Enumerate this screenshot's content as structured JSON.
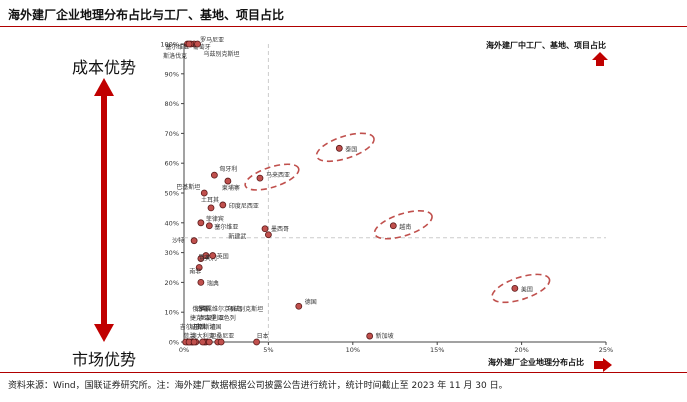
{
  "header": {
    "title": "海外建厂企业地理分布占比与工厂、基地、项目占比"
  },
  "left_axis_labels": {
    "top": "成本优势",
    "bottom": "市场优势"
  },
  "corner_labels": {
    "y_title": "海外建厂中工厂、基地、项目占比",
    "x_title": "海外建厂企业地理分布占比"
  },
  "footer": {
    "source": "资料来源：Wind，国联证券研究所。注：海外建厂数据根据公司披露公告进行统计，统计时间截止至 2023 年 11 月 30 日。"
  },
  "colors": {
    "accent": "#c00000",
    "point_fill": "#c0504d",
    "point_stroke": "#5a1a1a",
    "ellipse": "#c0504d"
  },
  "chart_data": {
    "type": "scatter",
    "xlim": [
      0,
      25
    ],
    "ylim": [
      0,
      100
    ],
    "x_ticks": [
      "0%",
      "5%",
      "10%",
      "15%",
      "20%",
      "25%"
    ],
    "y_ticks": [
      "0%",
      "10%",
      "20%",
      "30%",
      "40%",
      "50%",
      "60%",
      "70%",
      "80%",
      "90%",
      "100%"
    ],
    "reference_lines": {
      "x": 5,
      "y": 35
    },
    "points": [
      {
        "label": "罗马尼亚",
        "x": 0.6,
        "y": 100
      },
      {
        "label": "塞尔维亚",
        "x": 0.2,
        "y": 100
      },
      {
        "label": "葡萄牙",
        "x": 0.4,
        "y": 100
      },
      {
        "label": "斯洛伐克",
        "x": 0.3,
        "y": 100
      },
      {
        "label": "乌兹别克斯坦",
        "x": 0.8,
        "y": 100
      },
      {
        "label": "匈牙利",
        "x": 1.8,
        "y": 56
      },
      {
        "label": "柬埔寨",
        "x": 2.6,
        "y": 54
      },
      {
        "label": "马来西亚",
        "x": 4.5,
        "y": 55
      },
      {
        "label": "泰国",
        "x": 9.2,
        "y": 65
      },
      {
        "label": "巴基斯坦",
        "x": 1.2,
        "y": 50
      },
      {
        "label": "土耳其",
        "x": 1.6,
        "y": 45
      },
      {
        "label": "印度尼西亚",
        "x": 2.3,
        "y": 46
      },
      {
        "label": "越南",
        "x": 12.4,
        "y": 39
      },
      {
        "label": "墨西哥",
        "x": 4.8,
        "y": 38
      },
      {
        "label": "菲律宾",
        "x": 1.0,
        "y": 40
      },
      {
        "label": "塞尔维亚",
        "x": 1.5,
        "y": 39
      },
      {
        "label": "新建武",
        "x": 5.0,
        "y": 36
      },
      {
        "label": "沙特",
        "x": 0.6,
        "y": 34
      },
      {
        "label": "日本",
        "x": 1.3,
        "y": 29
      },
      {
        "label": "意大利",
        "x": 1.0,
        "y": 28
      },
      {
        "label": "英国",
        "x": 1.7,
        "y": 29
      },
      {
        "label": "南非",
        "x": 0.9,
        "y": 25
      },
      {
        "label": "瑞典",
        "x": 1.0,
        "y": 20
      },
      {
        "label": "美国",
        "x": 19.6,
        "y": 18
      },
      {
        "label": "德国",
        "x": 6.8,
        "y": 12
      },
      {
        "label": "加拿大",
        "x": 0.3,
        "y": 0
      },
      {
        "label": "卢森堡",
        "x": 0.5,
        "y": 0
      },
      {
        "label": "英属维尔京群岛",
        "x": 1.3,
        "y": 0
      },
      {
        "label": "澳大利亚",
        "x": 0.4,
        "y": 0
      },
      {
        "label": "巴西",
        "x": 0.2,
        "y": 0
      },
      {
        "label": "捷克",
        "x": 0.7,
        "y": 0
      },
      {
        "label": "俄罗斯",
        "x": 0.5,
        "y": 0
      },
      {
        "label": "坦桑尼亚",
        "x": 1.2,
        "y": 0
      },
      {
        "label": "吉尔吉斯斯坦",
        "x": 0.1,
        "y": 0
      },
      {
        "label": "以色列",
        "x": 2.0,
        "y": 0
      },
      {
        "label": "乌兹别克斯坦",
        "x": 2.2,
        "y": 0
      },
      {
        "label": "荷兰",
        "x": 0.3,
        "y": 0
      },
      {
        "label": "法国",
        "x": 1.5,
        "y": 0
      },
      {
        "label": "尼日利亚",
        "x": 0.6,
        "y": 0
      },
      {
        "label": "南非",
        "x": 1.1,
        "y": 0
      },
      {
        "label": "日本",
        "x": 4.3,
        "y": 0
      },
      {
        "label": "新加坡",
        "x": 11.0,
        "y": 2
      }
    ],
    "highlights": [
      "马来西亚",
      "泰国",
      "越南",
      "美国"
    ]
  }
}
